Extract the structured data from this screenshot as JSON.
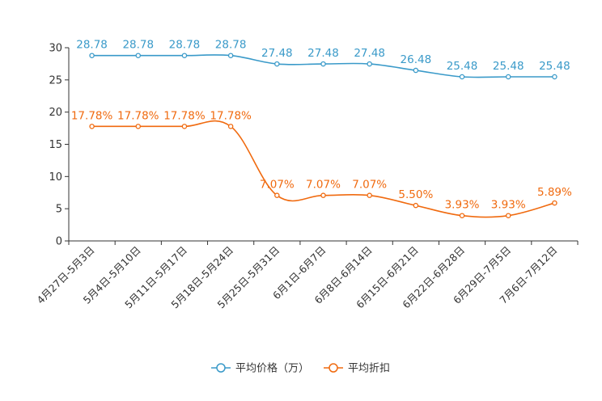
{
  "chart_data": {
    "type": "line",
    "categories": [
      "4月27日-5月3日",
      "5月4日-5月10日",
      "5月11日-5月17日",
      "5月18日-5月24日",
      "5月25日-5月31日",
      "6月1日-6月7日",
      "6月8日-6月14日",
      "6月15日-6月21日",
      "6月22日-6月28日",
      "6月29日-7月5日",
      "7月6日-7月12日"
    ],
    "ylim": [
      0,
      30
    ],
    "yticks": [
      0,
      5,
      10,
      15,
      20,
      25,
      30
    ],
    "series": [
      {
        "name": "平均价格（万）",
        "color": "#3a9ac9",
        "values": [
          28.78,
          28.78,
          28.78,
          28.78,
          27.48,
          27.48,
          27.48,
          26.48,
          25.48,
          25.48,
          25.48
        ],
        "labels": [
          "28.78",
          "28.78",
          "28.78",
          "28.78",
          "27.48",
          "27.48",
          "27.48",
          "26.48",
          "25.48",
          "25.48",
          "25.48"
        ]
      },
      {
        "name": "平均折扣",
        "color": "#f06a0f",
        "values": [
          17.78,
          17.78,
          17.78,
          17.78,
          7.07,
          7.07,
          7.07,
          5.5,
          3.93,
          3.93,
          5.89
        ],
        "labels": [
          "17.78%",
          "17.78%",
          "17.78%",
          "17.78%",
          "7.07%",
          "7.07%",
          "7.07%",
          "5.50%",
          "3.93%",
          "3.93%",
          "5.89%"
        ]
      }
    ],
    "legend": [
      "平均价格（万）",
      "平均折扣"
    ],
    "legend_position": "bottom-center",
    "grid": false
  }
}
